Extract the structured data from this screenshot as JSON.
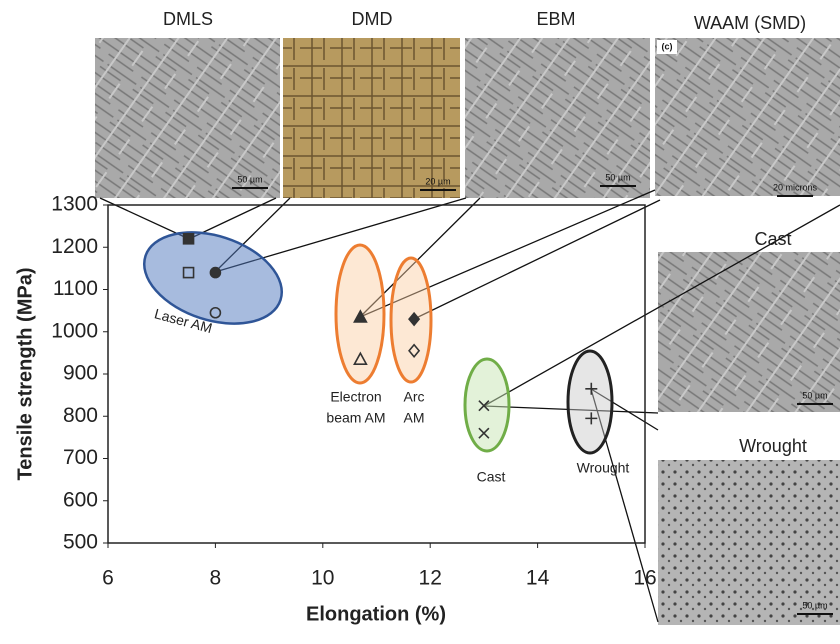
{
  "chart_data": {
    "type": "scatter",
    "xlabel": "Elongation (%)",
    "ylabel": "Tensile strength (MPa)",
    "xlim": [
      6,
      16
    ],
    "ylim": [
      500,
      1300
    ],
    "xticks": [
      6,
      8,
      10,
      12,
      14,
      16
    ],
    "yticks": [
      500,
      600,
      700,
      800,
      900,
      1000,
      1100,
      1200,
      1300
    ],
    "series": [
      {
        "marker": "square",
        "filled": true,
        "x": [
          7.5
        ],
        "values": [
          1220
        ]
      },
      {
        "marker": "square",
        "filled": false,
        "x": [
          7.5
        ],
        "values": [
          1140
        ]
      },
      {
        "marker": "circle",
        "filled": true,
        "x": [
          8
        ],
        "values": [
          1140
        ]
      },
      {
        "marker": "circle",
        "filled": false,
        "x": [
          8
        ],
        "values": [
          1045
        ]
      },
      {
        "marker": "triangle",
        "filled": true,
        "x": [
          10.7
        ],
        "values": [
          1035
        ]
      },
      {
        "marker": "triangle",
        "filled": false,
        "x": [
          10.7
        ],
        "values": [
          935
        ]
      },
      {
        "marker": "diamond",
        "filled": true,
        "x": [
          11.7
        ],
        "values": [
          1030
        ]
      },
      {
        "marker": "diamond",
        "filled": false,
        "x": [
          11.7
        ],
        "values": [
          955
        ]
      },
      {
        "marker": "x",
        "filled": false,
        "x": [
          13,
          13
        ],
        "values": [
          825,
          760
        ]
      },
      {
        "marker": "plus",
        "filled": false,
        "x": [
          15,
          15
        ],
        "values": [
          865,
          795
        ]
      }
    ],
    "color": "#333333",
    "groups": [
      {
        "lines": [
          "Laser AM"
        ]
      },
      {
        "lines": [
          "Electron",
          "beam AM"
        ]
      },
      {
        "lines": [
          "Arc",
          "AM"
        ]
      },
      {
        "lines": [
          "Cast"
        ]
      },
      {
        "lines": [
          "Wrought"
        ]
      }
    ],
    "micrographs": [
      {
        "title": "DMLS",
        "scale": "50 µm"
      },
      {
        "title": "DMD",
        "scale": "20 µm"
      },
      {
        "title": "EBM",
        "scale": "50 µm"
      },
      {
        "title": "WAAM (SMD)",
        "panel": "(c)",
        "scale": "20 microns"
      },
      {
        "title": "Cast",
        "scale": "50 µm"
      },
      {
        "title": "Wrought",
        "scale": "50 µm"
      }
    ]
  }
}
